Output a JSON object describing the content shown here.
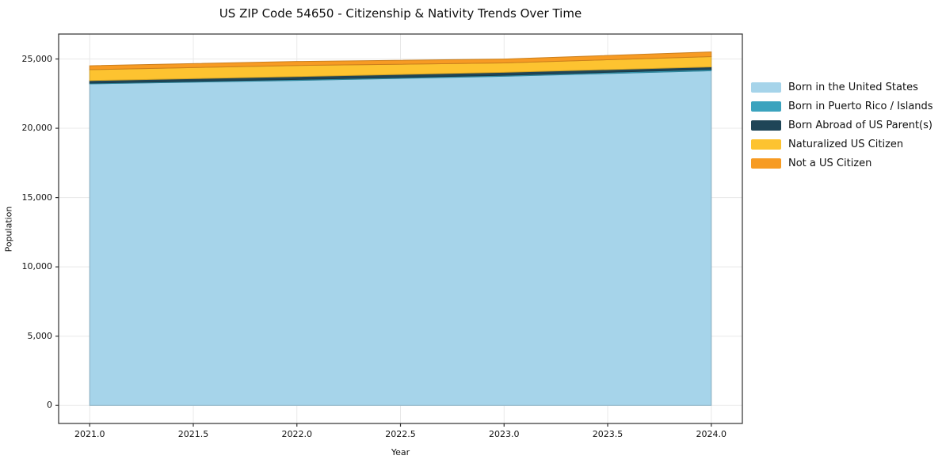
{
  "chart_data": {
    "type": "area",
    "stacked": true,
    "title": "US ZIP Code 54650 - Citizenship & Nativity Trends Over Time",
    "xlabel": "Year",
    "ylabel": "Population",
    "x": [
      2021,
      2022,
      2023,
      2024
    ],
    "series": [
      {
        "name": "Born in the United States",
        "color": "#a6d4ea",
        "values": [
          23200,
          23450,
          23750,
          24150
        ]
      },
      {
        "name": "Born in Puerto Rico / Islands",
        "color": "#3ba3be",
        "values": [
          60,
          70,
          75,
          100
        ]
      },
      {
        "name": "Born Abroad of US Parent(s)",
        "color": "#1f4557",
        "values": [
          180,
          210,
          210,
          180
        ]
      },
      {
        "name": "Naturalized US Citizen",
        "color": "#fdc330",
        "values": [
          790,
          800,
          680,
          740
        ]
      },
      {
        "name": "Not a US Citizen",
        "color": "#f79b23",
        "values": [
          280,
          290,
          280,
          340
        ]
      }
    ],
    "x_ticks": [
      "2021.0",
      "2021.5",
      "2022.0",
      "2022.5",
      "2023.0",
      "2023.5",
      "2024.0"
    ],
    "x_tick_values": [
      2021,
      2021.5,
      2022,
      2022.5,
      2023,
      2023.5,
      2024
    ],
    "y_ticks": [
      "0",
      "5,000",
      "10,000",
      "15,000",
      "20,000",
      "25,000"
    ],
    "y_tick_values": [
      0,
      5000,
      10000,
      15000,
      20000,
      25000
    ],
    "xlim": [
      2020.85,
      2024.15
    ],
    "ylim": [
      -1300,
      26800
    ],
    "grid": true,
    "legend_position": "right",
    "colors": {
      "grid": "#e8e8e8",
      "spine": "#2f2f2f",
      "background": "#ffffff"
    }
  }
}
